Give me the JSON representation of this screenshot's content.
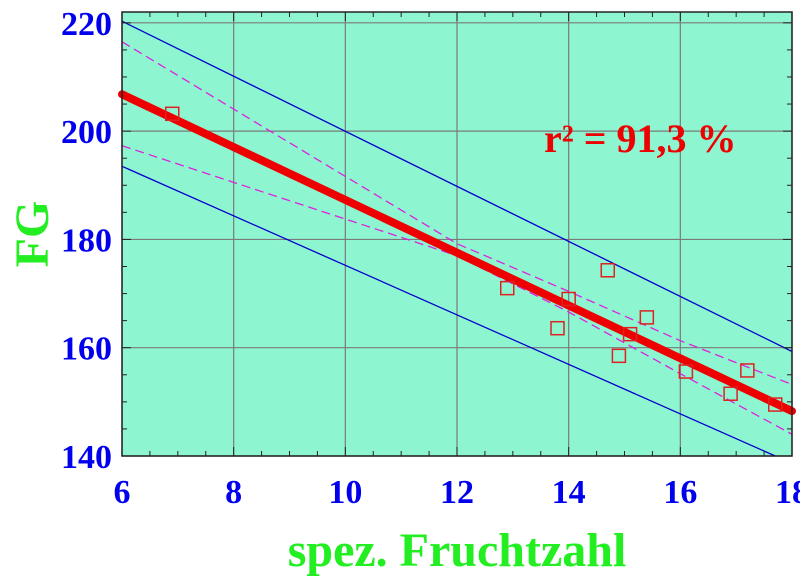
{
  "chart_data": {
    "type": "scatter",
    "xlabel": "spez. Fruchtzahl",
    "ylabel": "FG",
    "xlim": [
      6,
      18
    ],
    "ylim": [
      140,
      222
    ],
    "x_ticks": [
      "6",
      "8",
      "10",
      "12",
      "14",
      "16",
      "18"
    ],
    "y_ticks": [
      "140",
      "160",
      "180",
      "200",
      "220"
    ],
    "grid": true,
    "annotation": "r² = 91,3 %",
    "colors": {
      "plot_background": "#8ef5d1",
      "tick_labels": "#0000ee",
      "axis_titles": "#22ee22",
      "fit_line": "#ee0000",
      "markers": "#dd2222",
      "prediction_band": "#0000cc",
      "confidence_band": "#dd22dd",
      "annotation": "#ee0000"
    },
    "series": [
      {
        "values": [
          [
            6.9,
            203.2
          ],
          [
            12.9,
            171.0
          ],
          [
            13.8,
            163.6
          ],
          [
            14.0,
            169.0
          ],
          [
            14.7,
            174.3
          ],
          [
            14.9,
            158.5
          ],
          [
            15.1,
            162.5
          ],
          [
            15.4,
            165.6
          ],
          [
            16.1,
            155.6
          ],
          [
            16.9,
            151.5
          ],
          [
            17.2,
            155.8
          ],
          [
            17.7,
            149.5
          ]
        ]
      },
      {
        "x": [
          6,
          18
        ],
        "y": [
          206.8,
          148.3
        ]
      },
      {
        "x": [
          6,
          18
        ],
        "y": [
          220.3,
          159.3
        ]
      },
      {
        "x": [
          6,
          17.7
        ],
        "y": [
          193.5,
          140.0
        ]
      },
      {
        "x": [
          6,
          12,
          14,
          16,
          18
        ],
        "y": [
          216.5,
          179.2,
          170.4,
          161.3,
          153.2
        ]
      },
      {
        "x": [
          6,
          12,
          14,
          16,
          18
        ],
        "y": [
          197.3,
          177.0,
          166.6,
          155.2,
          144.0
        ]
      }
    ]
  }
}
